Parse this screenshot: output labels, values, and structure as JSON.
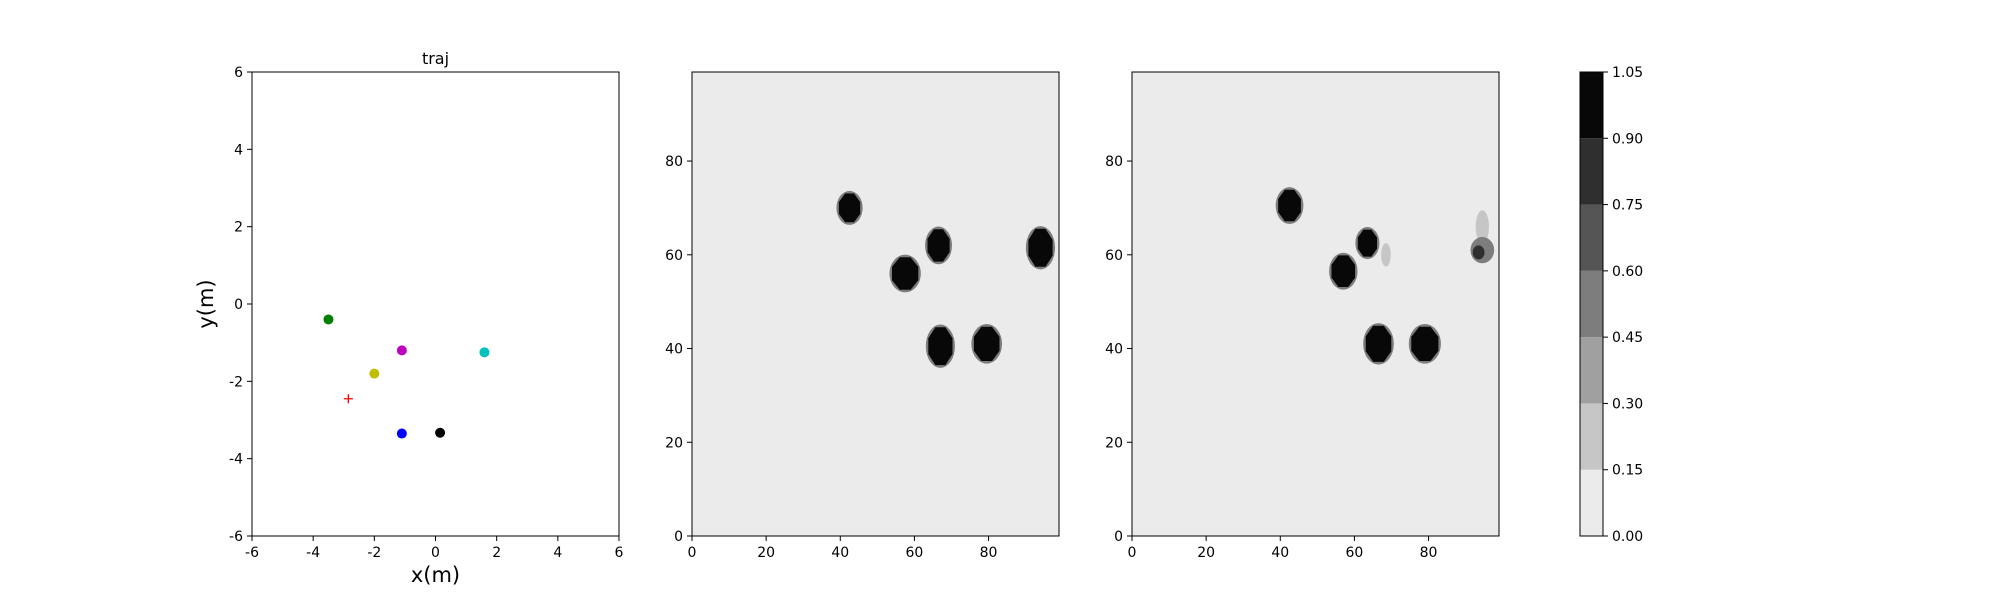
{
  "chart_data": [
    {
      "type": "scatter",
      "title": "traj",
      "xlabel": "x(m)",
      "ylabel": "y(m)",
      "xlim": [
        -6,
        6
      ],
      "ylim": [
        -6,
        6
      ],
      "xticks": [
        -6,
        -4,
        -2,
        0,
        2,
        4,
        6
      ],
      "yticks": [
        -6,
        -4,
        -2,
        0,
        2,
        4,
        6
      ],
      "grid": false,
      "points": [
        {
          "x": -3.5,
          "y": -0.4,
          "color": "#008000",
          "marker": "circle"
        },
        {
          "x": -1.1,
          "y": -1.2,
          "color": "#bf00bf",
          "marker": "circle"
        },
        {
          "x": 1.6,
          "y": -1.25,
          "color": "#00bfbf",
          "marker": "circle"
        },
        {
          "x": -2.0,
          "y": -1.8,
          "color": "#bfbf00",
          "marker": "circle"
        },
        {
          "x": -1.1,
          "y": -3.35,
          "color": "#0000ff",
          "marker": "circle"
        },
        {
          "x": 0.15,
          "y": -3.33,
          "color": "#000000",
          "marker": "circle"
        },
        {
          "x": -2.85,
          "y": -2.45,
          "color": "#ff0000",
          "marker": "plus"
        }
      ]
    },
    {
      "type": "heatmap",
      "title": "",
      "xlabel": "",
      "ylabel": "",
      "xlim": [
        0,
        99
      ],
      "ylim": [
        0,
        99
      ],
      "xticks": [
        0,
        20,
        40,
        60,
        80
      ],
      "yticks": [
        0,
        20,
        40,
        60,
        80
      ],
      "background": "#ebebeb",
      "blobs": [
        {
          "x": 42.5,
          "y": 70,
          "rx": 3,
          "ry": 3.2,
          "level": 1.0
        },
        {
          "x": 57.5,
          "y": 56,
          "rx": 3.7,
          "ry": 3.6,
          "level": 1.0
        },
        {
          "x": 66.5,
          "y": 62,
          "rx": 3.1,
          "ry": 3.6,
          "level": 1.0
        },
        {
          "x": 67,
          "y": 40.5,
          "rx": 3.4,
          "ry": 4.2,
          "level": 1.0
        },
        {
          "x": 79.5,
          "y": 41,
          "rx": 3.6,
          "ry": 3.8,
          "level": 1.0
        },
        {
          "x": 94,
          "y": 61.5,
          "rx": 3.4,
          "ry": 4.2,
          "level": 1.0
        }
      ]
    },
    {
      "type": "heatmap",
      "title": "",
      "xlabel": "",
      "ylabel": "",
      "xlim": [
        0,
        99
      ],
      "ylim": [
        0,
        99
      ],
      "xticks": [
        0,
        20,
        40,
        60,
        80
      ],
      "yticks": [
        0,
        20,
        40,
        60,
        80
      ],
      "background": "#ebebeb",
      "blobs": [
        {
          "x": 42.5,
          "y": 70.5,
          "rx": 3.2,
          "ry": 3.5,
          "level": 1.0
        },
        {
          "x": 57,
          "y": 56.5,
          "rx": 3.3,
          "ry": 3.5,
          "level": 1.0
        },
        {
          "x": 63.5,
          "y": 62.5,
          "rx": 2.7,
          "ry": 3.0,
          "level": 1.0
        },
        {
          "x": 68.5,
          "y": 60,
          "rx": 1.3,
          "ry": 2.5,
          "level": 0.2
        },
        {
          "x": 66.5,
          "y": 41,
          "rx": 3.6,
          "ry": 4.0,
          "level": 1.0
        },
        {
          "x": 79,
          "y": 41,
          "rx": 3.8,
          "ry": 3.8,
          "level": 1.0
        },
        {
          "x": 94.5,
          "y": 66,
          "rx": 1.8,
          "ry": 3.5,
          "level": 0.2
        },
        {
          "x": 94.5,
          "y": 61,
          "rx": 3.2,
          "ry": 2.8,
          "level": 0.45
        },
        {
          "x": 93.5,
          "y": 60.5,
          "rx": 1.6,
          "ry": 1.5,
          "level": 0.75
        }
      ]
    }
  ],
  "colorbar": {
    "ticks": [
      "0.00",
      "0.15",
      "0.30",
      "0.45",
      "0.60",
      "0.75",
      "0.90",
      "1.05"
    ],
    "levels": [
      0,
      0.15,
      0.3,
      0.45,
      0.6,
      0.75,
      0.9,
      1.05
    ],
    "colors": [
      "#ebebeb",
      "#c6c6c6",
      "#a0a0a0",
      "#7d7d7d",
      "#555555",
      "#2f2f2f",
      "#080808"
    ]
  }
}
